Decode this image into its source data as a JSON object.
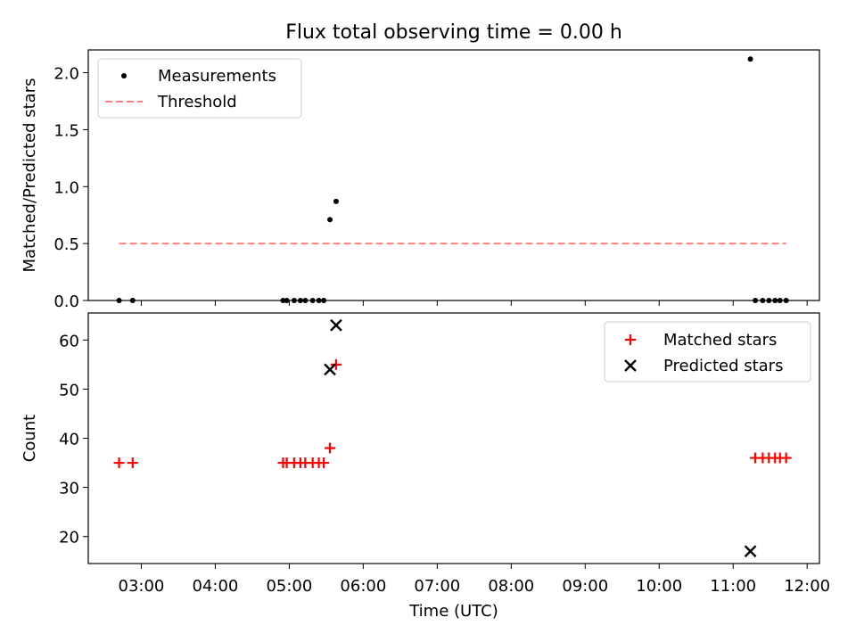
{
  "figure": {
    "title": "Flux total observing time = 0.00 h",
    "xlabel": "Time (UTC)",
    "x_ticks": [
      "03:00",
      "04:00",
      "05:00",
      "06:00",
      "07:00",
      "08:00",
      "09:00",
      "10:00",
      "11:00",
      "12:00"
    ]
  },
  "chart_data": [
    {
      "type": "scatter",
      "title": "Flux total observing time = 0.00 h",
      "ylabel": "Matched/Predicted stars",
      "xlabel": "",
      "xlim": [
        "02:17",
        "12:10"
      ],
      "ylim": [
        0,
        2.2
      ],
      "y_ticks": [
        "0.0",
        "0.5",
        "1.0",
        "1.5",
        "2.0"
      ],
      "legend_position": "top-left",
      "series": [
        {
          "name": "Measurements",
          "style": "dots",
          "color": "#000000",
          "x": [
            "02:42",
            "02:53",
            "04:55",
            "04:58",
            "05:04",
            "05:09",
            "05:13",
            "05:19",
            "05:24",
            "05:28",
            "05:33",
            "05:38",
            "11:14",
            "11:18",
            "11:24",
            "11:29",
            "11:34",
            "11:38",
            "11:43"
          ],
          "y": [
            0,
            0,
            0,
            0,
            0,
            0,
            0,
            0,
            0,
            0,
            0.71,
            0.87,
            2.12,
            0,
            0,
            0,
            0,
            0,
            0
          ]
        },
        {
          "name": "Threshold",
          "style": "dashed",
          "color": "#ff7f7f",
          "x": [
            "02:42",
            "11:43"
          ],
          "y": [
            0.5,
            0.5
          ]
        }
      ]
    },
    {
      "type": "scatter",
      "title": "",
      "ylabel": "Count",
      "xlabel": "Time (UTC)",
      "xlim": [
        "02:17",
        "12:10"
      ],
      "ylim": [
        14.5,
        65.5
      ],
      "y_ticks": [
        "20",
        "30",
        "40",
        "50",
        "60"
      ],
      "legend_position": "top-right",
      "series": [
        {
          "name": "Matched stars",
          "marker": "plus",
          "color": "#ff0000",
          "x": [
            "02:42",
            "02:53",
            "04:55",
            "04:58",
            "05:04",
            "05:09",
            "05:13",
            "05:19",
            "05:24",
            "05:28",
            "05:33",
            "05:38",
            "11:18",
            "11:24",
            "11:29",
            "11:34",
            "11:38",
            "11:43"
          ],
          "y": [
            35,
            35,
            35,
            35,
            35,
            35,
            35,
            35,
            35,
            35,
            38,
            55,
            36,
            36,
            36,
            36,
            36,
            36
          ]
        },
        {
          "name": "Predicted stars",
          "marker": "x",
          "color": "#000000",
          "x": [
            "05:33",
            "05:38",
            "11:14"
          ],
          "y": [
            54,
            63,
            17
          ]
        }
      ]
    }
  ]
}
